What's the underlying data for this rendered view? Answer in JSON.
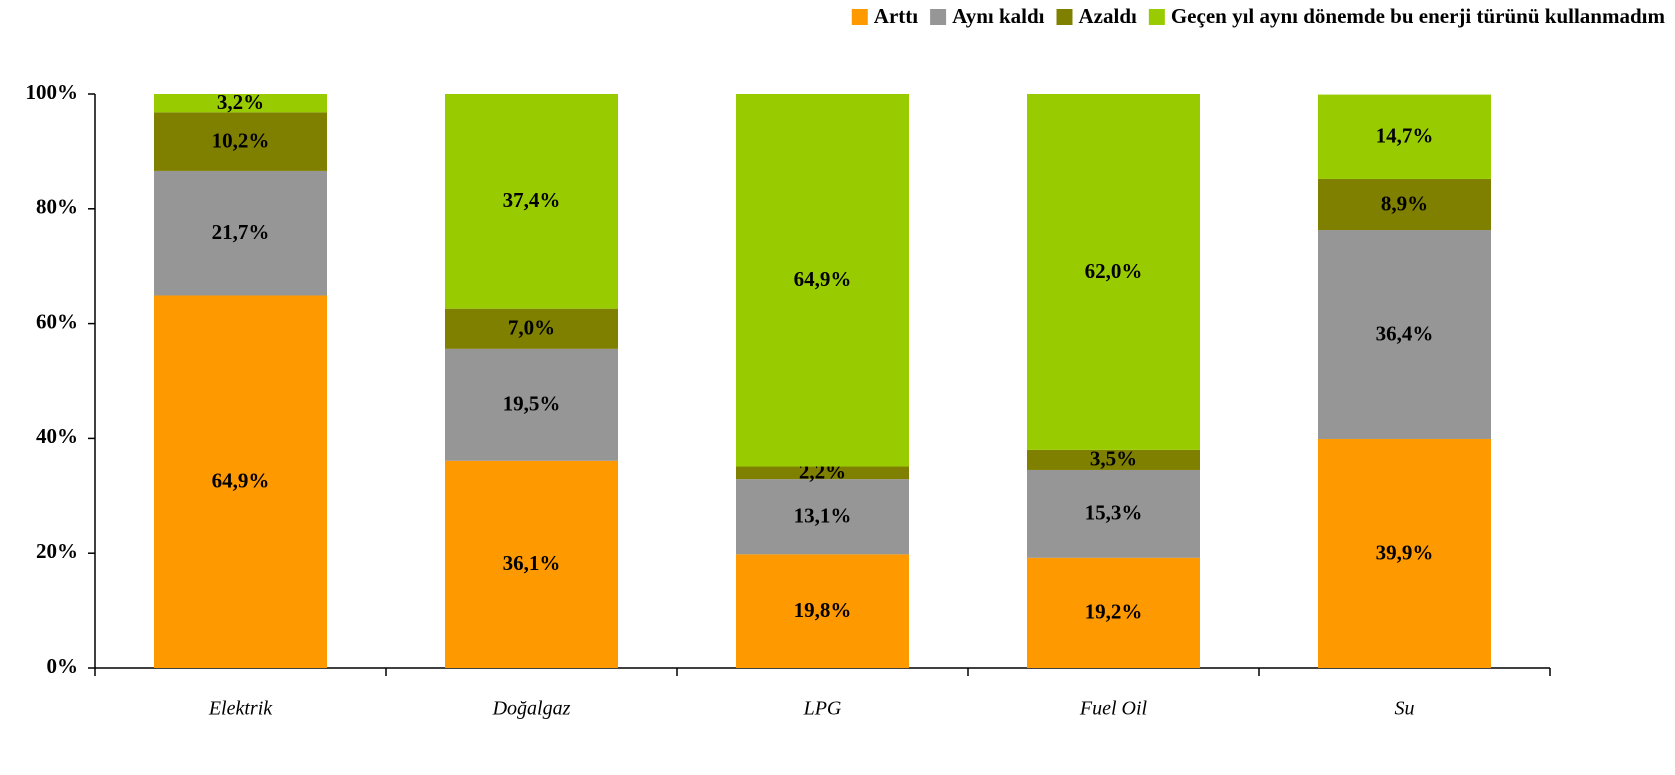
{
  "chart_data": {
    "type": "stacked-bar",
    "categories": [
      "Elektrik",
      "Doğalgaz",
      "LPG",
      "Fuel Oil",
      "Su"
    ],
    "series": [
      {
        "name": "Arttı",
        "color": "#ff9900",
        "values": [
          64.9,
          36.1,
          19.8,
          19.2,
          39.9
        ],
        "value_labels": [
          "64,9%",
          "36,1%",
          "19,8%",
          "19,2%",
          "39,9%"
        ]
      },
      {
        "name": "Aynı kaldı",
        "color": "#969696",
        "values": [
          21.7,
          19.5,
          13.1,
          15.3,
          36.4
        ],
        "value_labels": [
          "21,7%",
          "19,5%",
          "13,1%",
          "15,3%",
          "36,4%"
        ]
      },
      {
        "name": "Azaldı",
        "color": "#808000",
        "values": [
          10.2,
          7.0,
          2.2,
          3.5,
          8.9
        ],
        "value_labels": [
          "10,2%",
          "7,0%",
          "2,2%",
          "3,5%",
          "8,9%"
        ]
      },
      {
        "name": "Geçen yıl aynı dönemde bu enerji türünü kullanmadım",
        "color": "#99cc00",
        "values": [
          3.2,
          37.4,
          64.9,
          62.0,
          14.7
        ],
        "value_labels": [
          "3,2%",
          "37,4%",
          "64,9%",
          "62,0%",
          "14,7%"
        ]
      }
    ],
    "ylim": [
      0,
      100
    ],
    "yticks": [
      {
        "value": 0,
        "label": "0%"
      },
      {
        "value": 20,
        "label": "20%"
      },
      {
        "value": 40,
        "label": "40%"
      },
      {
        "value": 60,
        "label": "60%"
      },
      {
        "value": 80,
        "label": "80%"
      },
      {
        "value": 100,
        "label": "100%"
      }
    ],
    "legend": "top-right",
    "grid": false
  }
}
